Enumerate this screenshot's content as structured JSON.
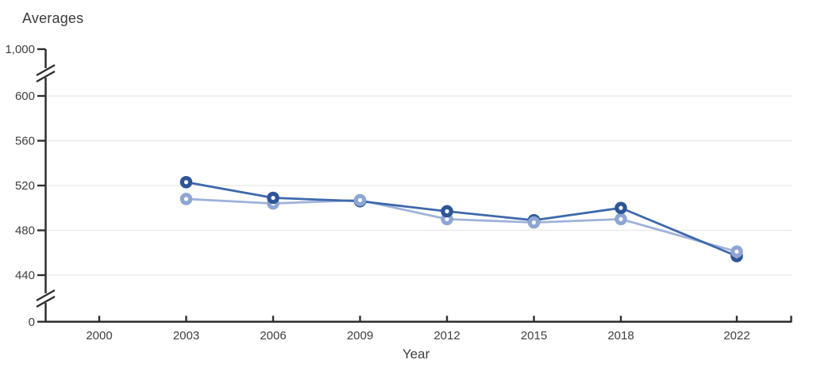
{
  "page": {
    "background": "#ffffff"
  },
  "chart_data": {
    "type": "line",
    "title": "Averages",
    "xlabel": "Year",
    "ylabel": "",
    "x": [
      2003,
      2006,
      2009,
      2012,
      2015,
      2018,
      2022
    ],
    "series": [
      {
        "name": "series-dark",
        "line_color": "#3e68ac",
        "marker_color": "#2c5697",
        "values": [
          523,
          509,
          506,
          497,
          489,
          500,
          457
        ]
      },
      {
        "name": "series-light",
        "line_color": "#9fb2da",
        "marker_color": "#8fa6d3",
        "values": [
          508,
          504,
          507,
          490,
          487,
          490,
          461
        ]
      }
    ],
    "y_axis": {
      "ticks": [
        600,
        560,
        520,
        480,
        440
      ],
      "tick_labels": [
        "600",
        "560",
        "520",
        "480",
        "440"
      ],
      "top_label": "1,000",
      "bottom_label": "0",
      "broken_axis": true,
      "grid": true,
      "ylim_visible": [
        440,
        600
      ]
    },
    "x_axis": {
      "ticks": [
        2000,
        2003,
        2006,
        2009,
        2012,
        2015,
        2018,
        2022
      ],
      "tick_labels": [
        "2000",
        "2003",
        "2006",
        "2009",
        "2012",
        "2015",
        "2018",
        "2022"
      ],
      "label": "Year"
    },
    "legend": null,
    "colors": {
      "grid": "#ebebeb",
      "axis": "#2f2f2f",
      "text": "#3f3f3f"
    }
  }
}
